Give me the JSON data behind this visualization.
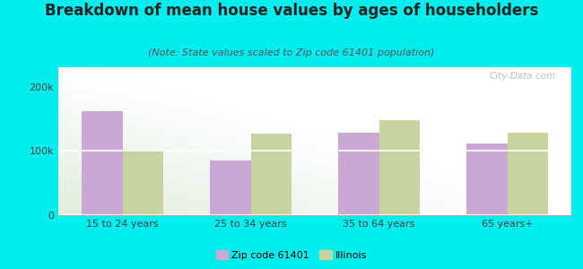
{
  "title": "Breakdown of mean house values by ages of householders",
  "subtitle": "(Note: State values scaled to Zip code 61401 population)",
  "categories": [
    "15 to 24 years",
    "25 to 34 years",
    "35 to 64 years",
    "65 years+"
  ],
  "zip_values": [
    162000,
    85000,
    128000,
    112000
  ],
  "illinois_values": [
    102000,
    127000,
    148000,
    128000
  ],
  "zip_color": "#C9A8D4",
  "illinois_color": "#C8D4A0",
  "background_outer": "#00EEEE",
  "ylim": [
    0,
    230000
  ],
  "yticks": [
    0,
    100000,
    200000
  ],
  "ytick_labels": [
    "0",
    "100k",
    "200k"
  ],
  "legend_zip_label": "Zip code 61401",
  "legend_illinois_label": "Illinois",
  "watermark": "City-Data.com",
  "bar_width": 0.32,
  "title_fontsize": 12,
  "subtitle_fontsize": 8,
  "tick_fontsize": 8,
  "legend_fontsize": 8
}
